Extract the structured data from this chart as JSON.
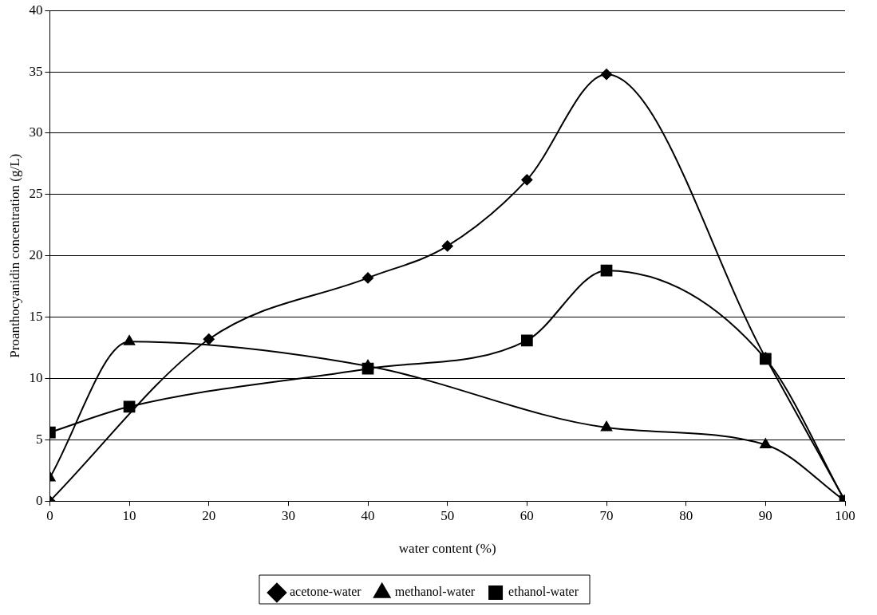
{
  "chart_data": {
    "type": "line",
    "xlabel": "water content (%)",
    "ylabel": "Proanthocyanidin concentration (g/L)",
    "xlim": [
      0,
      100
    ],
    "xticks": [
      0,
      10,
      20,
      30,
      40,
      50,
      60,
      70,
      80,
      90,
      100
    ],
    "ylim": [
      0,
      40
    ],
    "yticks": [
      0,
      5,
      10,
      15,
      20,
      25,
      30,
      35,
      40
    ],
    "grid": "y",
    "legend": "bottom",
    "line_style": "solid",
    "series": [
      {
        "name": "acetone-water",
        "color": "#000000",
        "marker": "diamond",
        "x": [
          0,
          20,
          40,
          50,
          60,
          70,
          90,
          100
        ],
        "values": [
          0,
          13.2,
          18.2,
          20.8,
          26.2,
          34.8,
          11.7,
          0
        ]
      },
      {
        "name": "methanol-water",
        "color": "#000000",
        "marker": "triangle",
        "x": [
          0,
          10,
          40,
          70,
          90,
          100
        ],
        "values": [
          1.9,
          13,
          11,
          6,
          4.6,
          0
        ]
      },
      {
        "name": "ethanol-water",
        "color": "#000000",
        "marker": "square",
        "x": [
          0,
          10,
          40,
          60,
          70,
          90,
          100
        ],
        "values": [
          5.6,
          7.7,
          10.8,
          13.1,
          18.8,
          11.6,
          0
        ]
      }
    ]
  }
}
